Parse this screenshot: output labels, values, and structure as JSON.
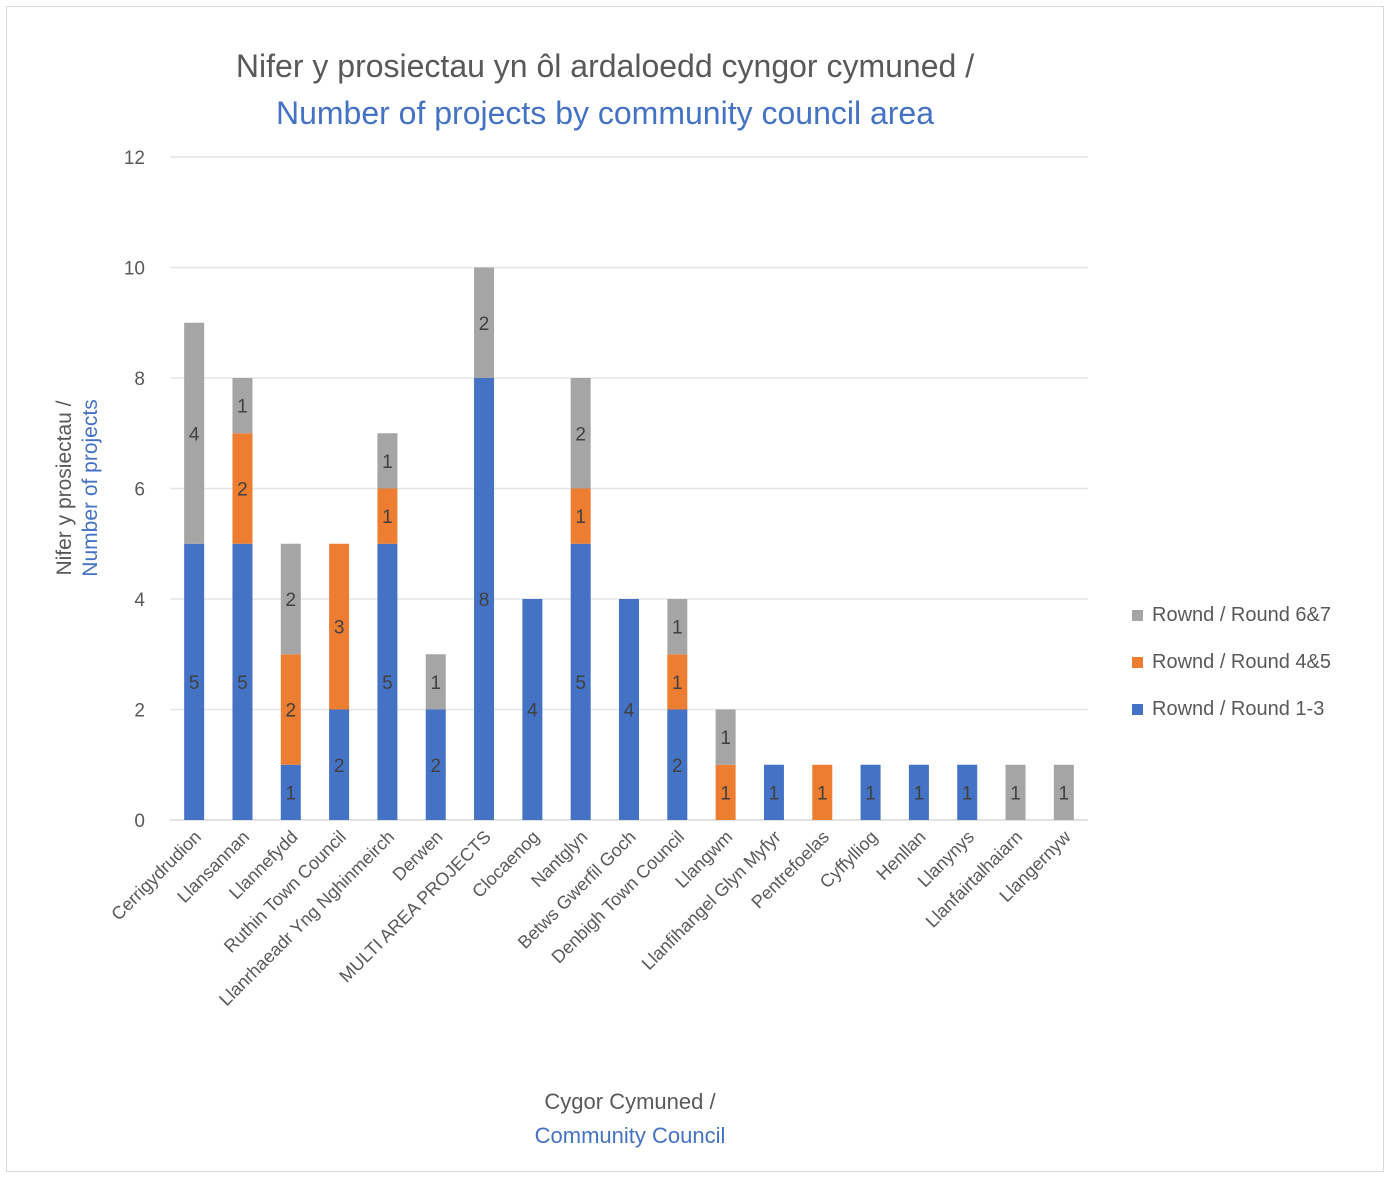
{
  "chart_data": {
    "type": "bar",
    "stacked": true,
    "title": "Nifer y prosiectau yn ôl ardaloedd cyngor cymuned /",
    "subtitle": "Number of projects by community council area",
    "ylabel_welsh": "Nifer y prosiectau /",
    "ylabel_english": "Number of projects",
    "xlabel_welsh": "Cygor Cymuned /",
    "xlabel_english": "Community Council",
    "ylim": [
      0,
      12
    ],
    "yticks": [
      "0",
      "2",
      "4",
      "6",
      "8",
      "10",
      "12"
    ],
    "grid": true,
    "legend_position": "right",
    "categories": [
      "Cerrigydrudion",
      "Llansannan",
      "Llannefydd",
      "Ruthin Town Council",
      "Llanrhaeadr Yng Nghinmeirch",
      "Derwen",
      "MULTI AREA PROJECTS",
      "Clocaenog",
      "Nantglyn",
      "Betws Gwerfil Goch",
      "Denbigh Town Council",
      "Llangwm",
      "Llanfihangel Glyn Myfyr",
      "Pentrefoelas",
      "Cyffylliog",
      "Henllan",
      "Llanynys",
      "Llanfairtalhaiarn",
      "Llangernyw"
    ],
    "series": [
      {
        "name": "Rownd / Round 1-3",
        "color": "#4472c4",
        "values": [
          5,
          5,
          1,
          2,
          5,
          2,
          8,
          4,
          5,
          4,
          2,
          0,
          1,
          0,
          1,
          1,
          1,
          0,
          0
        ]
      },
      {
        "name": "Rownd / Round 4&5",
        "color": "#ed7d31",
        "values": [
          0,
          2,
          2,
          3,
          1,
          0,
          0,
          0,
          1,
          0,
          1,
          1,
          0,
          1,
          0,
          0,
          0,
          0,
          0
        ]
      },
      {
        "name": "Rownd / Round 6&7",
        "color": "#a5a5a5",
        "values": [
          4,
          1,
          2,
          0,
          1,
          1,
          2,
          0,
          2,
          0,
          1,
          1,
          0,
          0,
          0,
          0,
          0,
          1,
          1
        ]
      }
    ],
    "legend_order": [
      "Rownd / Round 6&7",
      "Rownd / Round 4&5",
      "Rownd / Round 1-3"
    ]
  }
}
